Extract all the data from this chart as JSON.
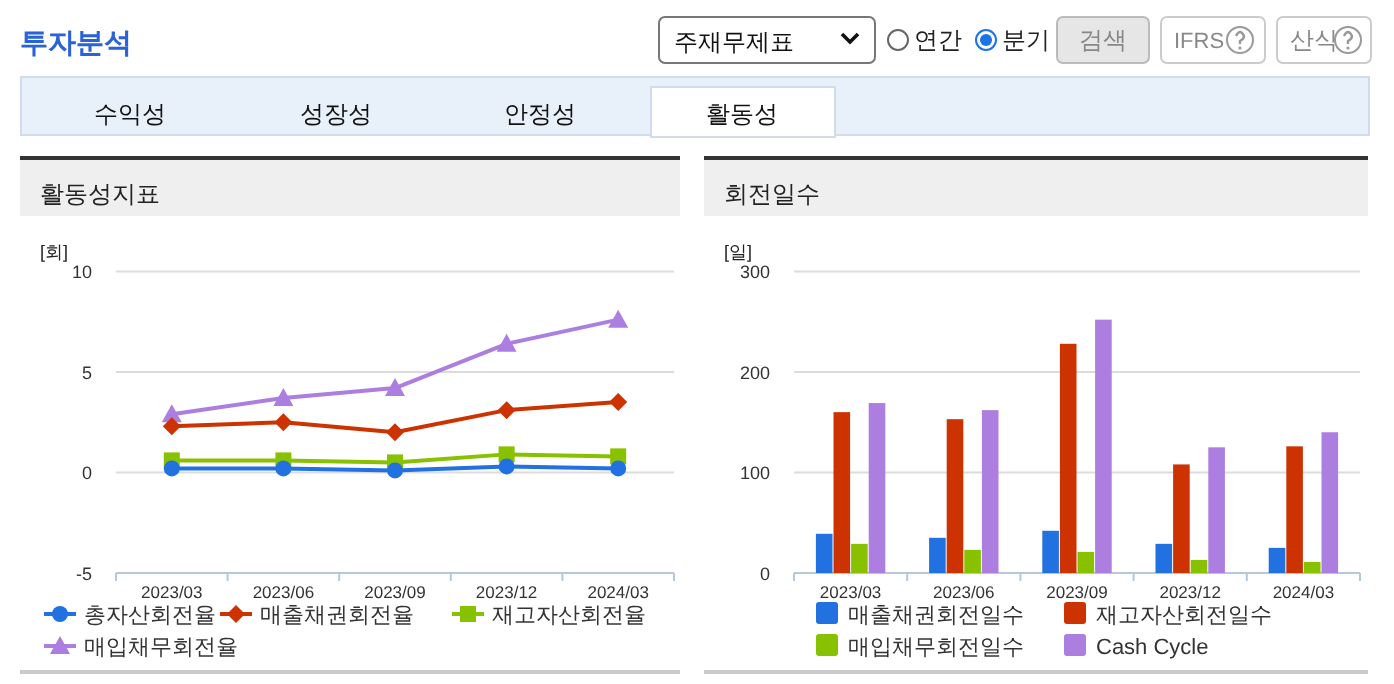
{
  "chart_data": [
    {
      "type": "other",
      "title": "투자분석",
      "annotations": [
        "주재무제표",
        "연간",
        "분기",
        "검색",
        "IFRS",
        "산식",
        "수익성",
        "성장성",
        "안정성",
        "활동성"
      ]
    },
    {
      "type": "line",
      "title": "활동성지표",
      "ylabel": "[회]",
      "categories": [
        "2023/03",
        "2023/06",
        "2023/09",
        "2023/12",
        "2024/03"
      ],
      "ylim": [
        -5,
        10
      ],
      "yticks": [
        -5,
        0,
        5,
        10
      ],
      "grid": "y",
      "legend": "bottom",
      "series": [
        {
          "name": "총자산회전율",
          "color": "#2171e0",
          "marker": "circle",
          "values": [
            0.2,
            0.2,
            0.1,
            0.3,
            0.2
          ]
        },
        {
          "name": "매출채권회전율",
          "color": "#cc3300",
          "marker": "diamond",
          "values": [
            2.3,
            2.5,
            2.0,
            3.1,
            3.5
          ]
        },
        {
          "name": "재고자산회전율",
          "color": "#88c100",
          "marker": "square",
          "values": [
            0.6,
            0.6,
            0.5,
            0.9,
            0.8
          ]
        },
        {
          "name": "매입채무회전율",
          "color": "#ab7ee0",
          "marker": "triangle",
          "values": [
            2.9,
            3.7,
            4.2,
            6.4,
            7.6
          ]
        }
      ]
    },
    {
      "type": "bar",
      "title": "회전일수",
      "ylabel": "[일]",
      "categories": [
        "2023/03",
        "2023/06",
        "2023/09",
        "2023/12",
        "2024/03"
      ],
      "ylim": [
        0,
        300
      ],
      "yticks": [
        0,
        100,
        200,
        300
      ],
      "grid": "y",
      "legend": "bottom",
      "series": [
        {
          "name": "매출채권회전일수",
          "color": "#2171e0",
          "values": [
            39,
            35,
            42,
            29,
            25
          ]
        },
        {
          "name": "재고자산회전일수",
          "color": "#cc3300",
          "values": [
            160,
            153,
            228,
            108,
            126
          ]
        },
        {
          "name": "매입채무회전일수",
          "color": "#88c100",
          "values": [
            29,
            23,
            21,
            13,
            11
          ]
        },
        {
          "name": "Cash Cycle",
          "color": "#ab7ee0",
          "values": [
            169,
            162,
            252,
            125,
            140
          ]
        }
      ]
    }
  ]
}
